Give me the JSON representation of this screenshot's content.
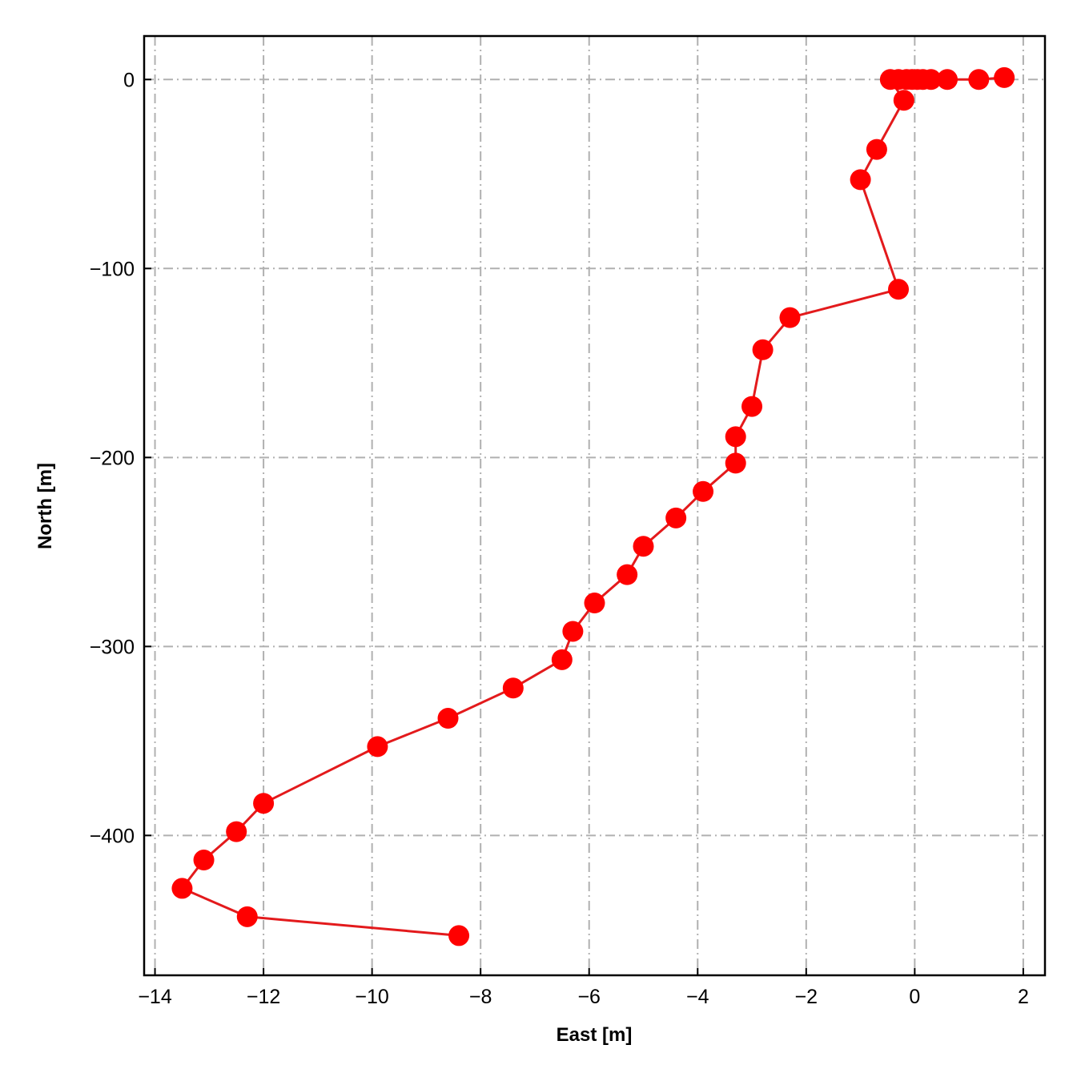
{
  "chart_data": {
    "type": "line",
    "title": "",
    "xlabel": "East [m]",
    "ylabel": "North [m]",
    "xlim": [
      -14.2,
      2.4
    ],
    "ylim": [
      -474,
      23
    ],
    "xticks": [
      -14,
      -12,
      -10,
      -8,
      -6,
      -4,
      -2,
      0,
      2
    ],
    "yticks": [
      0,
      -100,
      -200,
      -300,
      -400
    ],
    "xtick_labels": [
      "−14",
      "−12",
      "−10",
      "−8",
      "−6",
      "−4",
      "−2",
      "0",
      "2"
    ],
    "ytick_labels": [
      "0",
      "−100",
      "−200",
      "−300",
      "−400"
    ],
    "grid": true,
    "grid_style": "dash-dot",
    "legend": "none",
    "colors": {
      "series": "#e31a1c",
      "marker": "#ff0000",
      "grid": "#b0b0b0",
      "axes": "#000000"
    },
    "series": [
      {
        "marker": "circle",
        "x": [
          1.65,
          1.18,
          0.6,
          0.3,
          0.15,
          0.05,
          -0.05,
          -0.15,
          -0.3,
          -0.45,
          -0.2,
          -0.7,
          -1.0,
          -0.3,
          -2.3,
          -2.8,
          -3.0,
          -3.3,
          -3.3,
          -3.9,
          -4.4,
          -5.0,
          -5.3,
          -5.9,
          -6.3,
          -6.5,
          -7.4,
          -8.6,
          -9.9,
          -12.0,
          -12.5,
          -13.1,
          -13.5,
          -12.3,
          -8.4
        ],
        "y": [
          1,
          0,
          0,
          0,
          0,
          0,
          0,
          0,
          0,
          0,
          -11,
          -37,
          -53,
          -111,
          -126,
          -143,
          -173,
          -189,
          -203,
          -218,
          -232,
          -247,
          -262,
          -277,
          -292,
          -307,
          -322,
          -338,
          -353,
          -383,
          -398,
          -413,
          -428,
          -443,
          -453
        ]
      }
    ]
  }
}
